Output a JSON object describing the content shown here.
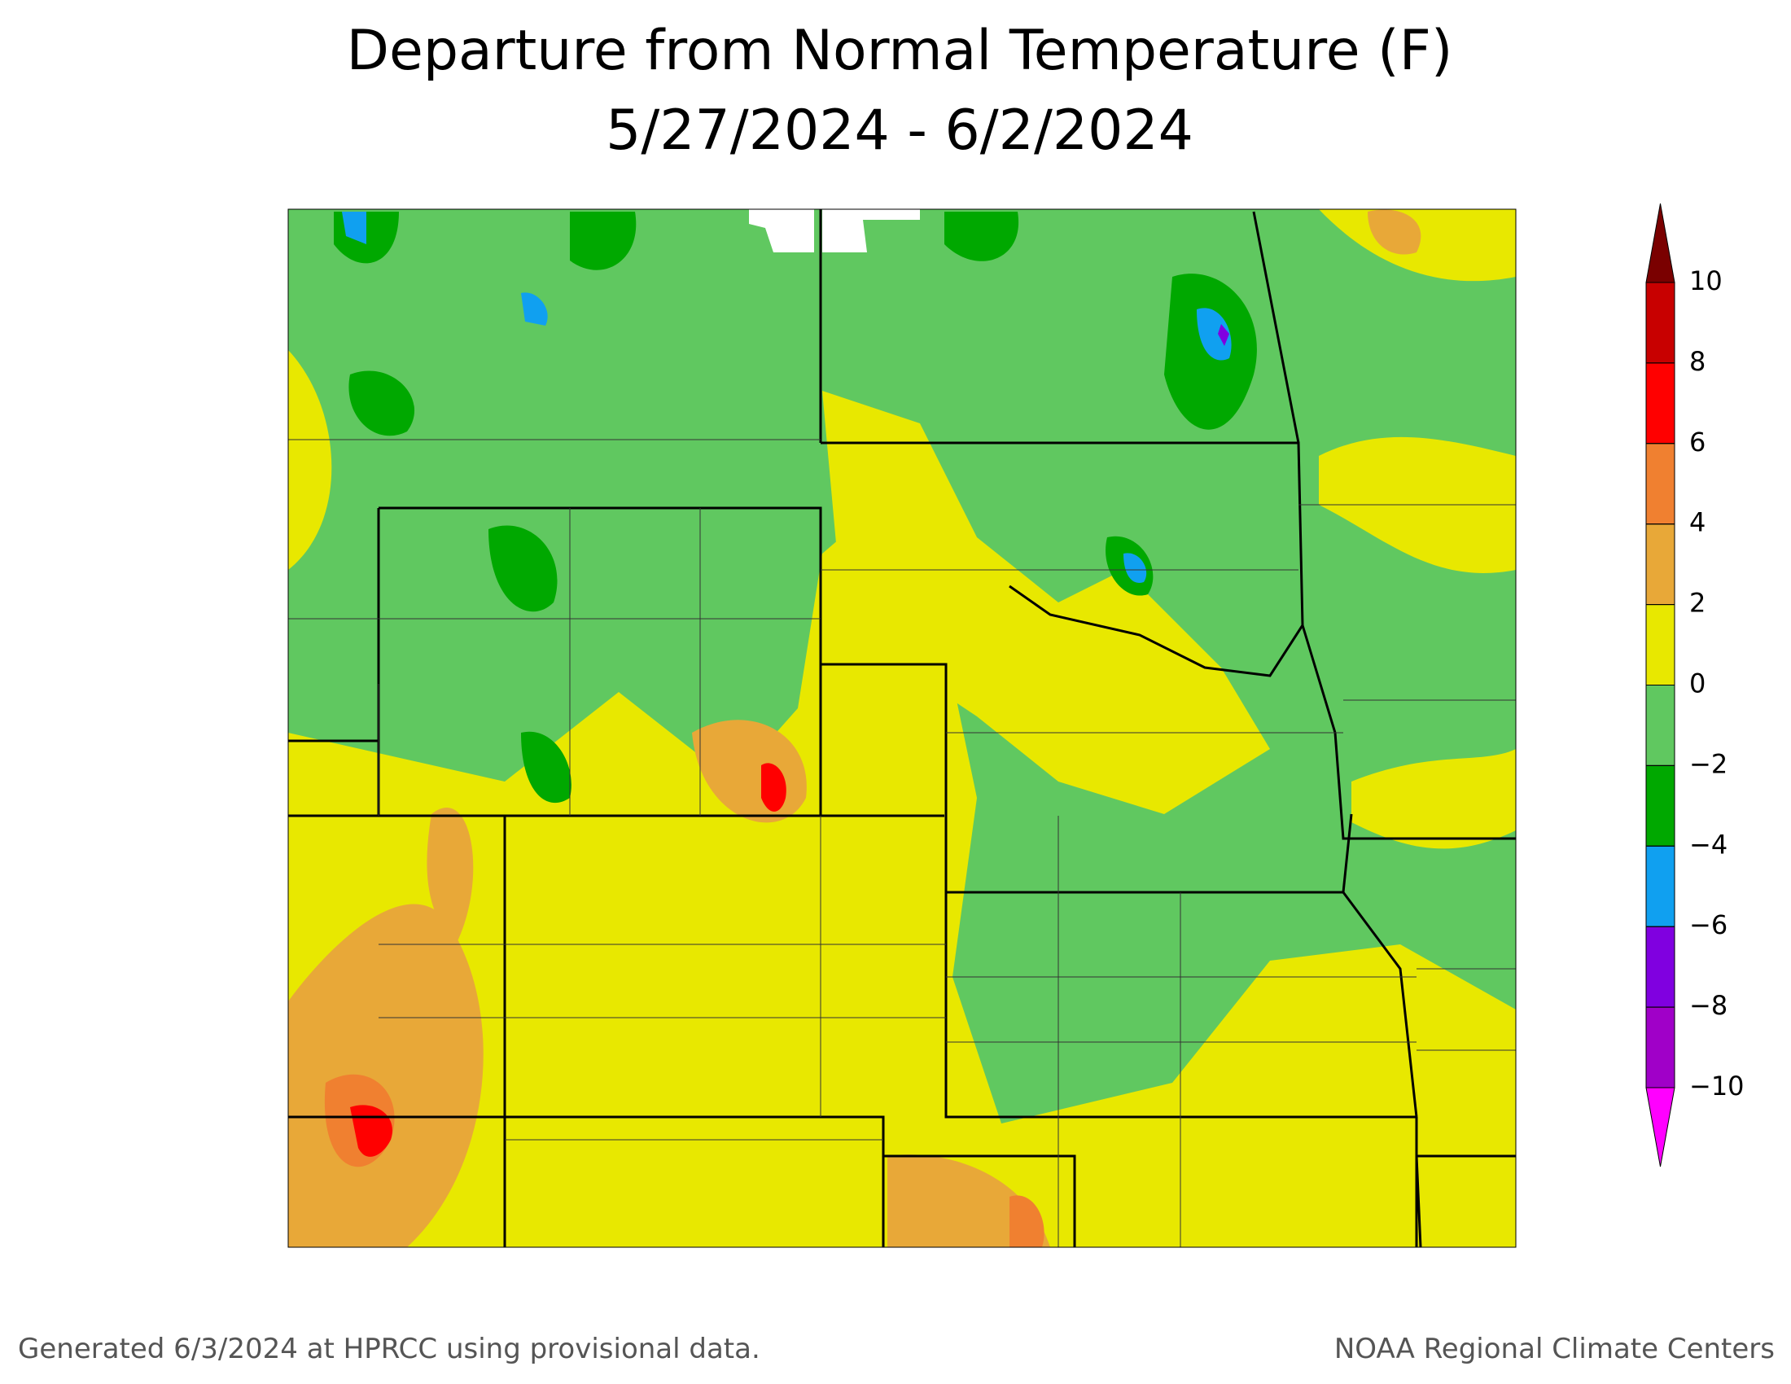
{
  "title": "Departure from Normal Temperature (F)",
  "subtitle": "5/27/2024 - 6/2/2024",
  "legend": {
    "ticks": [
      10,
      8,
      6,
      4,
      2,
      0,
      {
        "value": -2,
        "label": "−2"
      },
      {
        "value": -4,
        "label": "−4"
      },
      {
        "value": -6,
        "label": "−6"
      },
      {
        "value": -8,
        "label": "−8"
      },
      {
        "value": -10,
        "label": "−10"
      }
    ],
    "colors": [
      "#7a0000",
      "#c80000",
      "#ff0000",
      "#f08030",
      "#e8a838",
      "#e8e800",
      "#60c860",
      "#00a800",
      "#10a0f0",
      "#8000e0",
      "#a000c8",
      "#ff00ff"
    ]
  },
  "footer": {
    "left": "Generated 6/3/2024 at HPRCC using provisional data.",
    "right": "NOAA Regional Climate Centers"
  }
}
